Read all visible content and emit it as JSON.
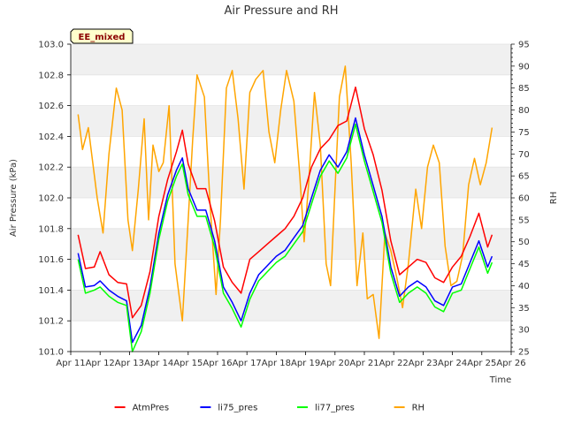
{
  "chart_data": {
    "type": "line",
    "title": "Air Pressure and RH",
    "badge": "EE_mixed",
    "xlabel": "Time",
    "ylabel": "Air Pressure (kPa)",
    "y2label": "RH",
    "xlim": [
      11,
      26
    ],
    "ylim": [
      101.0,
      103.0
    ],
    "y2lim": [
      25,
      95
    ],
    "x_ticks": [
      {
        "value": 11,
        "label": "Apr 11"
      },
      {
        "value": 12,
        "label": "Apr 12"
      },
      {
        "value": 13,
        "label": "Apr 13"
      },
      {
        "value": 14,
        "label": "Apr 14"
      },
      {
        "value": 15,
        "label": "Apr 15"
      },
      {
        "value": 16,
        "label": "Apr 16"
      },
      {
        "value": 17,
        "label": "Apr 17"
      },
      {
        "value": 18,
        "label": "Apr 18"
      },
      {
        "value": 19,
        "label": "Apr 19"
      },
      {
        "value": 20,
        "label": "Apr 20"
      },
      {
        "value": 21,
        "label": "Apr 21"
      },
      {
        "value": 22,
        "label": "Apr 22"
      },
      {
        "value": 23,
        "label": "Apr 23"
      },
      {
        "value": 24,
        "label": "Apr 24"
      },
      {
        "value": 25,
        "label": "Apr 25"
      },
      {
        "value": 26,
        "label": "Apr 26"
      }
    ],
    "y_ticks": [
      "101.0",
      "101.2",
      "101.4",
      "101.6",
      "101.8",
      "102.0",
      "102.2",
      "102.4",
      "102.6",
      "102.8",
      "103.0"
    ],
    "y2_ticks": [
      "25",
      "30",
      "35",
      "40",
      "45",
      "50",
      "55",
      "60",
      "65",
      "70",
      "75",
      "80",
      "85",
      "90",
      "95"
    ],
    "grid": "horizontal bands",
    "legend": "bottom-center",
    "series": [
      {
        "name": "AtmPres",
        "axis": "left",
        "color": "#ff0000",
        "x": [
          11.25,
          11.5,
          11.8,
          12.0,
          12.3,
          12.6,
          12.9,
          13.1,
          13.4,
          13.7,
          14.0,
          14.3,
          14.6,
          14.8,
          15.0,
          15.3,
          15.6,
          15.9,
          16.2,
          16.5,
          16.8,
          17.1,
          17.4,
          17.7,
          18.0,
          18.3,
          18.6,
          18.9,
          19.2,
          19.5,
          19.8,
          20.1,
          20.4,
          20.7,
          21.0,
          21.3,
          21.6,
          21.9,
          22.2,
          22.5,
          22.8,
          23.1,
          23.4,
          23.7,
          24.0,
          24.3,
          24.6,
          24.9,
          25.2,
          25.35
        ],
        "y": [
          101.76,
          101.54,
          101.55,
          101.65,
          101.5,
          101.45,
          101.44,
          101.22,
          101.3,
          101.52,
          101.88,
          102.12,
          102.3,
          102.44,
          102.22,
          102.06,
          102.06,
          101.85,
          101.55,
          101.45,
          101.38,
          101.6,
          101.65,
          101.7,
          101.75,
          101.8,
          101.88,
          102.0,
          102.2,
          102.32,
          102.38,
          102.47,
          102.5,
          102.72,
          102.45,
          102.28,
          102.05,
          101.72,
          101.5,
          101.55,
          101.6,
          101.58,
          101.48,
          101.45,
          101.55,
          101.62,
          101.75,
          101.9,
          101.68,
          101.76
        ]
      },
      {
        "name": "li75_pres",
        "axis": "left",
        "color": "#0000ff",
        "x": [
          11.25,
          11.5,
          11.8,
          12.0,
          12.3,
          12.6,
          12.9,
          13.1,
          13.4,
          13.7,
          14.0,
          14.3,
          14.6,
          14.8,
          15.0,
          15.3,
          15.6,
          15.9,
          16.2,
          16.5,
          16.8,
          17.1,
          17.4,
          17.7,
          18.0,
          18.3,
          18.6,
          18.9,
          19.2,
          19.5,
          19.8,
          20.1,
          20.4,
          20.7,
          21.0,
          21.3,
          21.6,
          21.9,
          22.2,
          22.5,
          22.8,
          23.1,
          23.4,
          23.7,
          24.0,
          24.3,
          24.6,
          24.9,
          25.2,
          25.35
        ],
        "y": [
          101.64,
          101.42,
          101.43,
          101.46,
          101.4,
          101.36,
          101.33,
          101.06,
          101.17,
          101.42,
          101.77,
          102.02,
          102.18,
          102.26,
          102.06,
          101.92,
          101.92,
          101.72,
          101.42,
          101.32,
          101.2,
          101.38,
          101.5,
          101.56,
          101.62,
          101.66,
          101.74,
          101.82,
          102.0,
          102.18,
          102.28,
          102.2,
          102.3,
          102.52,
          102.28,
          102.08,
          101.88,
          101.55,
          101.36,
          101.42,
          101.46,
          101.42,
          101.33,
          101.3,
          101.42,
          101.44,
          101.58,
          101.72,
          101.55,
          101.62
        ]
      },
      {
        "name": "li77_pres",
        "axis": "left",
        "color": "#00ff00",
        "x": [
          11.25,
          11.5,
          11.8,
          12.0,
          12.3,
          12.6,
          12.9,
          13.1,
          13.4,
          13.7,
          14.0,
          14.3,
          14.6,
          14.8,
          15.0,
          15.3,
          15.6,
          15.9,
          16.2,
          16.5,
          16.8,
          17.1,
          17.4,
          17.7,
          18.0,
          18.3,
          18.6,
          18.9,
          19.2,
          19.5,
          19.8,
          20.1,
          20.4,
          20.7,
          21.0,
          21.3,
          21.6,
          21.9,
          22.2,
          22.5,
          22.8,
          23.1,
          23.4,
          23.7,
          24.0,
          24.3,
          24.6,
          24.9,
          25.2,
          25.35
        ],
        "y": [
          101.6,
          101.38,
          101.4,
          101.42,
          101.36,
          101.32,
          101.3,
          101.0,
          101.13,
          101.38,
          101.73,
          101.98,
          102.14,
          102.22,
          102.02,
          101.88,
          101.88,
          101.68,
          101.38,
          101.28,
          101.16,
          101.34,
          101.46,
          101.52,
          101.58,
          101.62,
          101.7,
          101.78,
          101.96,
          102.14,
          102.24,
          102.16,
          102.26,
          102.48,
          102.24,
          102.04,
          101.84,
          101.51,
          101.32,
          101.38,
          101.42,
          101.38,
          101.29,
          101.26,
          101.38,
          101.4,
          101.54,
          101.68,
          101.51,
          101.58
        ]
      },
      {
        "name": "RH",
        "axis": "right",
        "color": "#ffa500",
        "x": [
          11.25,
          11.4,
          11.6,
          11.9,
          12.1,
          12.3,
          12.55,
          12.75,
          12.95,
          13.1,
          13.3,
          13.5,
          13.65,
          13.8,
          14.0,
          14.15,
          14.35,
          14.55,
          14.8,
          15.0,
          15.15,
          15.3,
          15.55,
          15.75,
          15.95,
          16.1,
          16.3,
          16.5,
          16.7,
          16.9,
          17.1,
          17.3,
          17.55,
          17.75,
          17.95,
          18.15,
          18.35,
          18.6,
          18.8,
          18.95,
          19.1,
          19.3,
          19.5,
          19.7,
          19.85,
          20.0,
          20.15,
          20.35,
          20.55,
          20.75,
          20.95,
          21.1,
          21.3,
          21.5,
          21.7,
          21.9,
          22.1,
          22.3,
          22.5,
          22.75,
          22.95,
          23.15,
          23.35,
          23.55,
          23.75,
          23.95,
          24.15,
          24.35,
          24.55,
          24.75,
          24.95,
          25.15,
          25.35
        ],
        "y": [
          79,
          71,
          76,
          60,
          52,
          70,
          85,
          80,
          55,
          48,
          62,
          78,
          55,
          72,
          66,
          68,
          81,
          45,
          32,
          55,
          73,
          88,
          83,
          58,
          38,
          55,
          85,
          89,
          78,
          62,
          84,
          87,
          89,
          75,
          68,
          80,
          89,
          82,
          65,
          50,
          63,
          84,
          72,
          45,
          40,
          62,
          83,
          90,
          68,
          40,
          52,
          37,
          38,
          28,
          52,
          48,
          42,
          35,
          45,
          62,
          53,
          67,
          72,
          68,
          49,
          40,
          41,
          47,
          63,
          69,
          63,
          68,
          76
        ]
      }
    ]
  }
}
